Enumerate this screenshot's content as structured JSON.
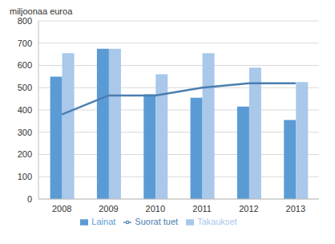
{
  "chart_data": {
    "type": "bar",
    "ylabel": "miljoonaa euroa",
    "categories": [
      "2008",
      "2009",
      "2010",
      "2011",
      "2012",
      "2013"
    ],
    "series": [
      {
        "name": "Lainat",
        "type": "bar",
        "color": "#5b9bd5",
        "values": [
          550,
          675,
          470,
          455,
          415,
          355
        ]
      },
      {
        "name": "Takaukset",
        "type": "bar",
        "color": "#a9c8ea",
        "values": [
          655,
          675,
          560,
          655,
          590,
          525
        ]
      },
      {
        "name": "Suorat tuet",
        "type": "line",
        "color": "#4a7eb0",
        "marker": "none",
        "values": [
          380,
          465,
          465,
          500,
          520,
          520
        ]
      }
    ],
    "ylim": [
      0,
      800
    ],
    "yticks": [
      0,
      100,
      200,
      300,
      400,
      500,
      600,
      700,
      800
    ],
    "grid": true,
    "legend": "bottom"
  }
}
